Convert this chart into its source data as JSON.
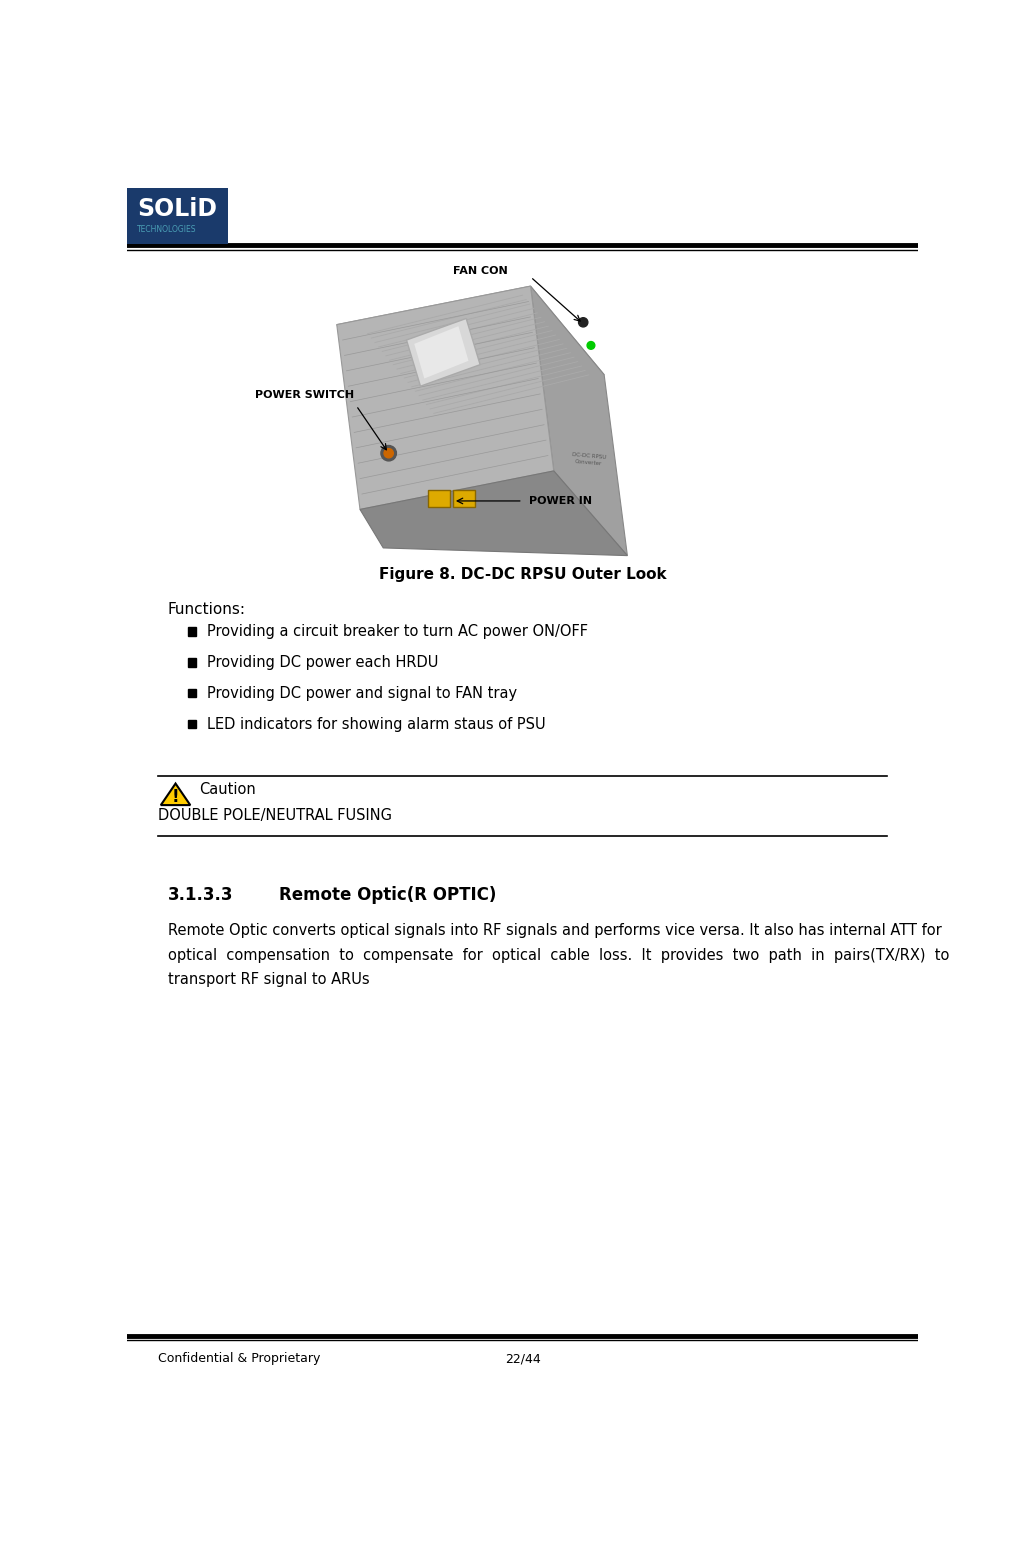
{
  "bg_color": "#ffffff",
  "logo_box_color": "#1a3a6b",
  "logo_text1": "SOLiD",
  "logo_text2": "TECHNOLOGIES",
  "header_line_color": "#000000",
  "figure_caption": "Figure 8. DC-DC RPSU Outer Look",
  "label_fancon": "FAN CON",
  "label_powerswitch": "POWER SWITCH",
  "label_powerin": "POWER IN",
  "functions_title": "Functions:",
  "bullet_items": [
    "Providing a circuit breaker to turn AC power ON/OFF",
    "Providing DC power each HRDU",
    "Providing DC power and signal to FAN tray",
    "LED indicators for showing alarm staus of PSU"
  ],
  "caution_text": "Caution",
  "caution_body": "DOUBLE POLE/NEUTRAL FUSING",
  "section_number": "3.1.3.3",
  "section_title": "Remote Optic(R OPTIC)",
  "section_body1": "Remote Optic converts optical signals into RF signals and performs vice versa. It also has internal ATT for",
  "section_body2": "optical  compensation  to  compensate  for  optical  cable  loss.  It  provides  two  path  in  pairs(TX/RX)  to",
  "section_body3": "transport RF signal to ARUs",
  "footer_left": "Confidential & Proprietary",
  "footer_right": "22/44",
  "footer_line_color": "#000000"
}
